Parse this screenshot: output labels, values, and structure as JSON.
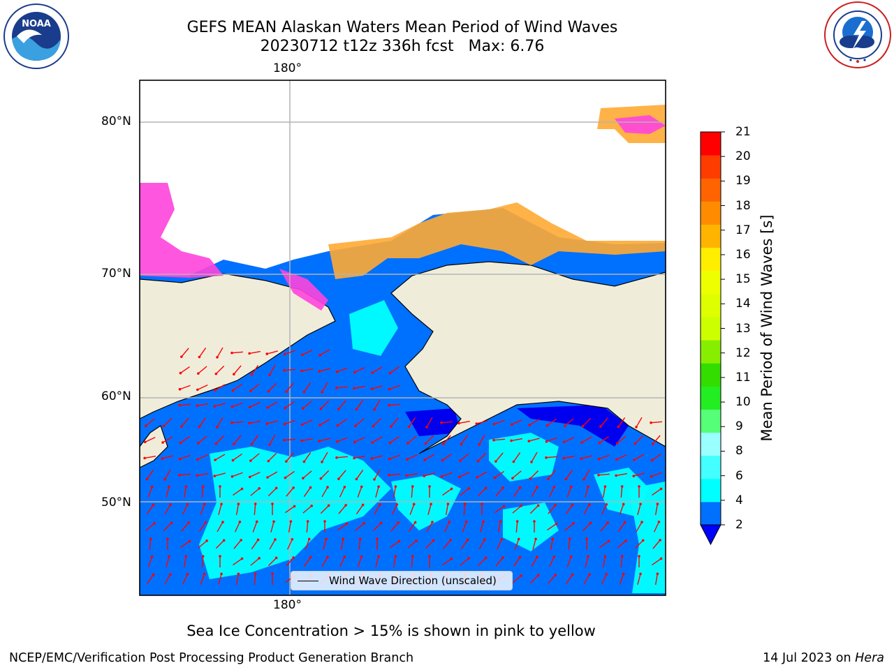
{
  "header": {
    "title_line1": "GEFS MEAN Alaskan Waters Mean Period of Wind Waves",
    "title_line2": "20230712 t12z 336h fcst   Max: 6.76"
  },
  "logos": {
    "left": {
      "name": "noaa-logo",
      "text": "NOAA",
      "ring_text": "NATIONAL OCEANIC AND ATMOSPHERIC ADMINISTRATION · U.S. DEPARTMENT OF COMMERCE"
    },
    "right": {
      "name": "nws-logo",
      "ring_text": "NATIONAL WEATHER SERVICE"
    }
  },
  "map": {
    "lon_label_top": "180°",
    "lon_label_bottom": "180°",
    "lat_labels": [
      "80°N",
      "70°N",
      "60°N",
      "50°N"
    ],
    "legend_text": "Wind Wave Direction (unscaled)",
    "colors": {
      "ocean_low": "#0070ff",
      "ocean_mid": "#00ffff",
      "land": "#efedda",
      "grid": "#b4b4b4",
      "arrow": "#ff0000",
      "ice_pink": "#ff44dd",
      "ice_orange": "#ffaa33",
      "ice_yellow": "#ffee33"
    }
  },
  "colorbar": {
    "label": "Mean Period of Wind Waves [s]",
    "tick_labels": [
      "21",
      "20",
      "19",
      "18",
      "17",
      "16",
      "15",
      "14",
      "13",
      "12",
      "11",
      "10",
      "9",
      "8",
      "6",
      "4",
      "2"
    ],
    "colors_bottom_to_top": [
      "#0070ff",
      "#00ffff",
      "#44ffff",
      "#99ffff",
      "#55ff77",
      "#22ee22",
      "#33dd00",
      "#88ee00",
      "#ccff00",
      "#ddff00",
      "#eeff00",
      "#ffee00",
      "#ffb400",
      "#ff8c00",
      "#ff6400",
      "#ff3c00",
      "#ff0000"
    ],
    "extend_color": "#0000ff"
  },
  "caption": "Sea Ice Concentration > 15% is shown in pink to yellow",
  "footer": {
    "left": "NCEP/EMC/Verification Post Processing Product Generation Branch",
    "right_date": "14 Jul 2023 on ",
    "right_host": "Hera"
  }
}
